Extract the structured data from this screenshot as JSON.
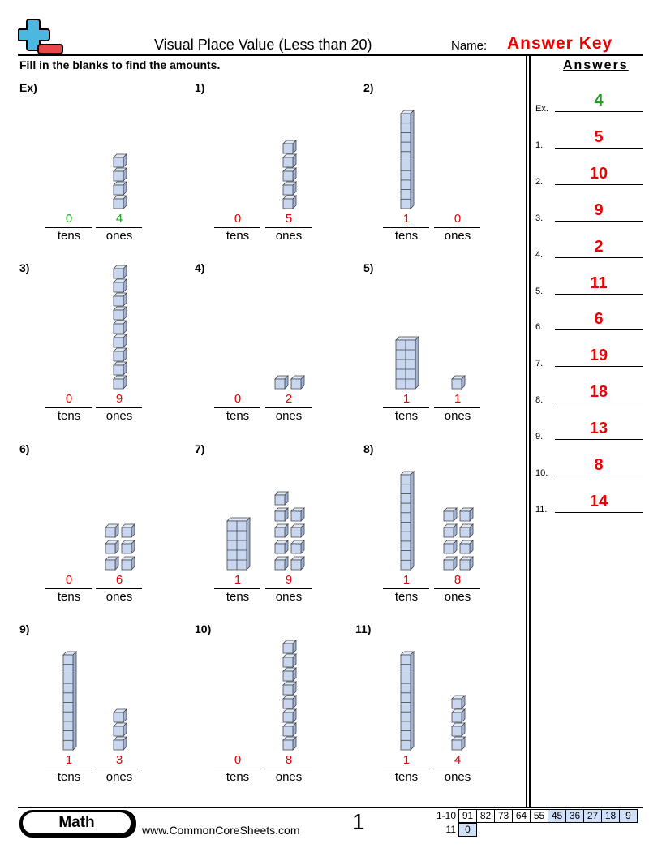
{
  "header": {
    "title": "Visual Place Value (Less than 20)",
    "name_label": "Name:",
    "name_value": "Answer Key",
    "instructions": "Fill in the blanks to find the amounts."
  },
  "labels": {
    "tens": "tens",
    "ones": "ones"
  },
  "colors": {
    "answer": "#ee0000",
    "example": "#1aa31a",
    "cube_fill": "#c8d6f0",
    "cube_stroke": "#444444"
  },
  "problems": [
    {
      "label": "Ex)",
      "tens": "0",
      "ones": "4",
      "t": 0,
      "o": 4,
      "tens_style": "rod",
      "ones_arrangement": "column",
      "example": true
    },
    {
      "label": "1)",
      "tens": "0",
      "ones": "5",
      "t": 0,
      "o": 5,
      "tens_style": "rod",
      "ones_arrangement": "column"
    },
    {
      "label": "2)",
      "tens": "1",
      "ones": "0",
      "t": 1,
      "o": 0,
      "tens_style": "rod",
      "ones_arrangement": "column"
    },
    {
      "label": "3)",
      "tens": "0",
      "ones": "9",
      "t": 0,
      "o": 9,
      "tens_style": "rod",
      "ones_arrangement": "column"
    },
    {
      "label": "4)",
      "tens": "0",
      "ones": "2",
      "t": 0,
      "o": 2,
      "tens_style": "rod",
      "ones_arrangement": "row"
    },
    {
      "label": "5)",
      "tens": "1",
      "ones": "1",
      "t": 1,
      "o": 1,
      "tens_style": "block",
      "ones_arrangement": "column"
    },
    {
      "label": "6)",
      "tens": "0",
      "ones": "6",
      "t": 0,
      "o": 6,
      "tens_style": "rod",
      "ones_arrangement": "pairs"
    },
    {
      "label": "7)",
      "tens": "1",
      "ones": "9",
      "t": 1,
      "o": 9,
      "tens_style": "block",
      "ones_arrangement": "pairs"
    },
    {
      "label": "8)",
      "tens": "1",
      "ones": "8",
      "t": 1,
      "o": 8,
      "tens_style": "rod",
      "ones_arrangement": "pairs"
    },
    {
      "label": "9)",
      "tens": "1",
      "ones": "3",
      "t": 1,
      "o": 3,
      "tens_style": "rod",
      "ones_arrangement": "column"
    },
    {
      "label": "10)",
      "tens": "0",
      "ones": "8",
      "t": 0,
      "o": 8,
      "tens_style": "rod",
      "ones_arrangement": "column"
    },
    {
      "label": "11)",
      "tens": "1",
      "ones": "4",
      "t": 1,
      "o": 4,
      "tens_style": "rod",
      "ones_arrangement": "column"
    }
  ],
  "answers": {
    "heading": "Answers",
    "items": [
      {
        "n": "Ex.",
        "v": "4"
      },
      {
        "n": "1.",
        "v": "5"
      },
      {
        "n": "2.",
        "v": "10"
      },
      {
        "n": "3.",
        "v": "9"
      },
      {
        "n": "4.",
        "v": "2"
      },
      {
        "n": "5.",
        "v": "11"
      },
      {
        "n": "6.",
        "v": "6"
      },
      {
        "n": "7.",
        "v": "19"
      },
      {
        "n": "8.",
        "v": "18"
      },
      {
        "n": "9.",
        "v": "13"
      },
      {
        "n": "10.",
        "v": "8"
      },
      {
        "n": "11.",
        "v": "14"
      }
    ]
  },
  "footer": {
    "subject": "Math",
    "url": "www.CommonCoreSheets.com",
    "page": "1",
    "score_rows": [
      {
        "label": "1-10",
        "cells": [
          "91",
          "82",
          "73",
          "64",
          "55",
          "45",
          "36",
          "27",
          "18",
          "9"
        ]
      },
      {
        "label": "11",
        "cells": [
          "0"
        ]
      }
    ]
  }
}
